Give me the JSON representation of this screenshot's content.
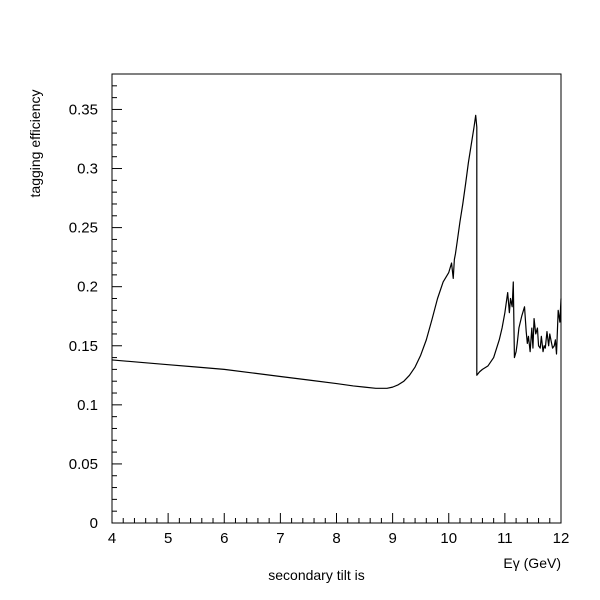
{
  "chart_data": {
    "type": "line",
    "title": "secondary tilt is",
    "xlabel": "Eγ (GeV)",
    "ylabel": "tagging efficiency",
    "xlim": [
      4,
      12
    ],
    "ylim": [
      0,
      0.38
    ],
    "x_ticks": [
      4,
      5,
      6,
      7,
      8,
      9,
      10,
      11,
      12
    ],
    "x_tick_labels": [
      "4",
      "5",
      "6",
      "7",
      "8",
      "9",
      "10",
      "11",
      "12"
    ],
    "y_ticks": [
      0,
      0.05,
      0.1,
      0.15,
      0.2,
      0.25,
      0.3,
      0.35
    ],
    "y_tick_labels": [
      "0",
      "0.05",
      "0.1",
      "0.15",
      "0.2",
      "0.25",
      "0.3",
      "0.35"
    ],
    "grid": false,
    "legend": "none",
    "series": [
      {
        "color": "#000000",
        "x": [
          4.0,
          4.5,
          5.0,
          5.5,
          6.0,
          6.5,
          7.0,
          7.5,
          8.0,
          8.3,
          8.5,
          8.7,
          8.9,
          9.0,
          9.1,
          9.2,
          9.3,
          9.4,
          9.5,
          9.6,
          9.7,
          9.8,
          9.9,
          10.0,
          10.05,
          10.08,
          10.1,
          10.12,
          10.15,
          10.2,
          10.25,
          10.3,
          10.35,
          10.4,
          10.45,
          10.48,
          10.5,
          10.5,
          10.55,
          10.6,
          10.7,
          10.8,
          10.9,
          10.95,
          11.0,
          11.05,
          11.08,
          11.1,
          11.13,
          11.15,
          11.17,
          11.2,
          11.22,
          11.25,
          11.3,
          11.35,
          11.38,
          11.4,
          11.42,
          11.45,
          11.48,
          11.5,
          11.52,
          11.55,
          11.58,
          11.6,
          11.63,
          11.65,
          11.68,
          11.7,
          11.72,
          11.75,
          11.78,
          11.8,
          11.82,
          11.85,
          11.88,
          11.9,
          11.92,
          11.95,
          11.98,
          12.0
        ],
        "y": [
          0.138,
          0.136,
          0.134,
          0.132,
          0.13,
          0.127,
          0.124,
          0.121,
          0.118,
          0.116,
          0.115,
          0.114,
          0.114,
          0.115,
          0.117,
          0.12,
          0.125,
          0.132,
          0.142,
          0.155,
          0.172,
          0.19,
          0.204,
          0.212,
          0.22,
          0.207,
          0.223,
          0.228,
          0.238,
          0.255,
          0.27,
          0.287,
          0.305,
          0.32,
          0.335,
          0.345,
          0.335,
          0.125,
          0.128,
          0.13,
          0.133,
          0.14,
          0.155,
          0.165,
          0.178,
          0.195,
          0.178,
          0.19,
          0.183,
          0.204,
          0.14,
          0.145,
          0.152,
          0.165,
          0.175,
          0.183,
          0.162,
          0.152,
          0.158,
          0.145,
          0.165,
          0.148,
          0.173,
          0.16,
          0.165,
          0.15,
          0.148,
          0.158,
          0.145,
          0.15,
          0.148,
          0.162,
          0.15,
          0.16,
          0.155,
          0.148,
          0.15,
          0.155,
          0.143,
          0.18,
          0.17,
          0.19
        ]
      }
    ]
  }
}
